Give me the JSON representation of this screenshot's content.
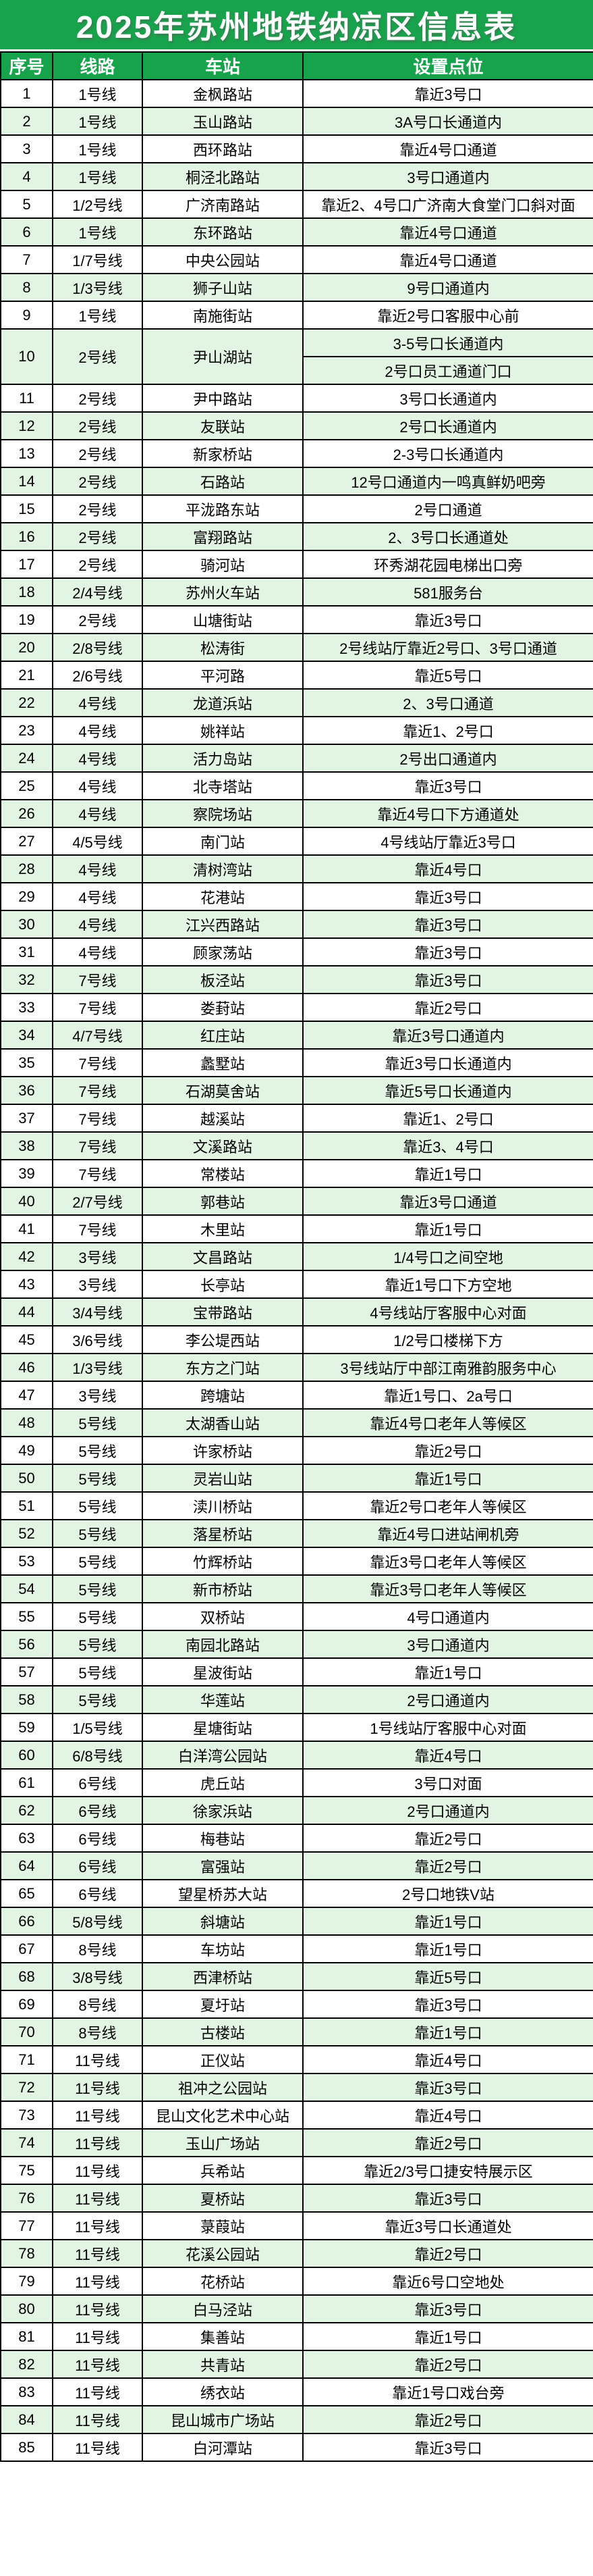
{
  "title": "2025年苏州地铁纳凉区信息表",
  "colors": {
    "header_green": "#17a34b",
    "row_green": "#e2f5e3",
    "row_white": "#ffffff",
    "border": "#000000",
    "header_text": "#ffffff",
    "body_text": "#000000"
  },
  "table": {
    "headers": [
      "序号",
      "线路",
      "车站",
      "设置点位"
    ],
    "rows": [
      {
        "n": "1",
        "line": "1号线",
        "station": "金枫路站",
        "loc": "靠近3号口"
      },
      {
        "n": "2",
        "line": "1号线",
        "station": "玉山路站",
        "loc": "3A号口长通道内"
      },
      {
        "n": "3",
        "line": "1号线",
        "station": "西环路站",
        "loc": "靠近4号口通道"
      },
      {
        "n": "4",
        "line": "1号线",
        "station": "桐泾北路站",
        "loc": "3号口通道内"
      },
      {
        "n": "5",
        "line": "1/2号线",
        "station": "广济南路站",
        "loc": "靠近2、4号口广济南大食堂门口斜对面"
      },
      {
        "n": "6",
        "line": "1号线",
        "station": "东环路站",
        "loc": "靠近4号口通道"
      },
      {
        "n": "7",
        "line": "1/7号线",
        "station": "中央公园站",
        "loc": "靠近4号口通道"
      },
      {
        "n": "8",
        "line": "1/3号线",
        "station": "狮子山站",
        "loc": "9号口通道内"
      },
      {
        "n": "9",
        "line": "1号线",
        "station": "南施街站",
        "loc": "靠近2号口客服中心前"
      },
      {
        "n": "10",
        "line": "2号线",
        "station": "尹山湖站",
        "loc": [
          "3-5号口长通道内",
          "2号口员工通道门口"
        ]
      },
      {
        "n": "11",
        "line": "2号线",
        "station": "尹中路站",
        "loc": "3号口长通道内"
      },
      {
        "n": "12",
        "line": "2号线",
        "station": "友联站",
        "loc": "2号口长通道内"
      },
      {
        "n": "13",
        "line": "2号线",
        "station": "新家桥站",
        "loc": "2-3号口长通道内"
      },
      {
        "n": "14",
        "line": "2号线",
        "station": "石路站",
        "loc": "12号口通道内一鸣真鲜奶吧旁"
      },
      {
        "n": "15",
        "line": "2号线",
        "station": "平泷路东站",
        "loc": "2号口通道"
      },
      {
        "n": "16",
        "line": "2号线",
        "station": "富翔路站",
        "loc": "2、3号口长通道处"
      },
      {
        "n": "17",
        "line": "2号线",
        "station": "骑河站",
        "loc": "环秀湖花园电梯出口旁"
      },
      {
        "n": "18",
        "line": "2/4号线",
        "station": "苏州火车站",
        "loc": "581服务台"
      },
      {
        "n": "19",
        "line": "2号线",
        "station": "山塘街站",
        "loc": "靠近3号口"
      },
      {
        "n": "20",
        "line": "2/8号线",
        "station": "松涛街",
        "loc": "2号线站厅靠近2号口、3号口通道"
      },
      {
        "n": "21",
        "line": "2/6号线",
        "station": "平河路",
        "loc": "靠近5号口"
      },
      {
        "n": "22",
        "line": "4号线",
        "station": "龙道浜站",
        "loc": "2、3号口通道"
      },
      {
        "n": "23",
        "line": "4号线",
        "station": "姚祥站",
        "loc": "靠近1、2号口"
      },
      {
        "n": "24",
        "line": "4号线",
        "station": "活力岛站",
        "loc": "2号出口通道内"
      },
      {
        "n": "25",
        "line": "4号线",
        "station": "北寺塔站",
        "loc": "靠近3号口"
      },
      {
        "n": "26",
        "line": "4号线",
        "station": "察院场站",
        "loc": "靠近4号口下方通道处"
      },
      {
        "n": "27",
        "line": "4/5号线",
        "station": "南门站",
        "loc": "4号线站厅靠近3号口"
      },
      {
        "n": "28",
        "line": "4号线",
        "station": "清树湾站",
        "loc": "靠近4号口"
      },
      {
        "n": "29",
        "line": "4号线",
        "station": "花港站",
        "loc": "靠近3号口"
      },
      {
        "n": "30",
        "line": "4号线",
        "station": "江兴西路站",
        "loc": "靠近3号口"
      },
      {
        "n": "31",
        "line": "4号线",
        "station": "顾家荡站",
        "loc": "靠近3号口"
      },
      {
        "n": "32",
        "line": "7号线",
        "station": "板泾站",
        "loc": "靠近3号口"
      },
      {
        "n": "33",
        "line": "7号线",
        "station": "娄葑站",
        "loc": "靠近2号口"
      },
      {
        "n": "34",
        "line": "4/7号线",
        "station": "红庄站",
        "loc": "靠近3号口通道内"
      },
      {
        "n": "35",
        "line": "7号线",
        "station": "蠡墅站",
        "loc": "靠近3号口长通道内"
      },
      {
        "n": "36",
        "line": "7号线",
        "station": "石湖莫舍站",
        "loc": "靠近5号口长通道内"
      },
      {
        "n": "37",
        "line": "7号线",
        "station": "越溪站",
        "loc": "靠近1、2号口"
      },
      {
        "n": "38",
        "line": "7号线",
        "station": "文溪路站",
        "loc": "靠近3、4号口"
      },
      {
        "n": "39",
        "line": "7号线",
        "station": "常楼站",
        "loc": "靠近1号口"
      },
      {
        "n": "40",
        "line": "2/7号线",
        "station": "郭巷站",
        "loc": "靠近3号口通道"
      },
      {
        "n": "41",
        "line": "7号线",
        "station": "木里站",
        "loc": "靠近1号口"
      },
      {
        "n": "42",
        "line": "3号线",
        "station": "文昌路站",
        "loc": "1/4号口之间空地"
      },
      {
        "n": "43",
        "line": "3号线",
        "station": "长亭站",
        "loc": "靠近1号口下方空地"
      },
      {
        "n": "44",
        "line": "3/4号线",
        "station": "宝带路站",
        "loc": "4号线站厅客服中心对面"
      },
      {
        "n": "45",
        "line": "3/6号线",
        "station": "李公堤西站",
        "loc": "1/2号口楼梯下方"
      },
      {
        "n": "46",
        "line": "1/3号线",
        "station": "东方之门站",
        "loc": "3号线站厅中部江南雅韵服务中心"
      },
      {
        "n": "47",
        "line": "3号线",
        "station": "跨塘站",
        "loc": "靠近1号口、2a号口"
      },
      {
        "n": "48",
        "line": "5号线",
        "station": "太湖香山站",
        "loc": "靠近4号口老年人等候区"
      },
      {
        "n": "49",
        "line": "5号线",
        "station": "许家桥站",
        "loc": "靠近2号口"
      },
      {
        "n": "50",
        "line": "5号线",
        "station": "灵岩山站",
        "loc": "靠近1号口"
      },
      {
        "n": "51",
        "line": "5号线",
        "station": "渎川桥站",
        "loc": "靠近2号口老年人等候区"
      },
      {
        "n": "52",
        "line": "5号线",
        "station": "落星桥站",
        "loc": "靠近4号口进站闸机旁"
      },
      {
        "n": "53",
        "line": "5号线",
        "station": "竹辉桥站",
        "loc": "靠近3号口老年人等候区"
      },
      {
        "n": "54",
        "line": "5号线",
        "station": "新市桥站",
        "loc": "靠近3号口老年人等候区"
      },
      {
        "n": "55",
        "line": "5号线",
        "station": "双桥站",
        "loc": "4号口通道内"
      },
      {
        "n": "56",
        "line": "5号线",
        "station": "南园北路站",
        "loc": "3号口通道内"
      },
      {
        "n": "57",
        "line": "5号线",
        "station": "星波街站",
        "loc": "靠近1号口"
      },
      {
        "n": "58",
        "line": "5号线",
        "station": "华莲站",
        "loc": "2号口通道内"
      },
      {
        "n": "59",
        "line": "1/5号线",
        "station": "星塘街站",
        "loc": "1号线站厅客服中心对面"
      },
      {
        "n": "60",
        "line": "6/8号线",
        "station": "白洋湾公园站",
        "loc": "靠近4号口"
      },
      {
        "n": "61",
        "line": "6号线",
        "station": "虎丘站",
        "loc": "3号口对面"
      },
      {
        "n": "62",
        "line": "6号线",
        "station": "徐家浜站",
        "loc": "2号口通道内"
      },
      {
        "n": "63",
        "line": "6号线",
        "station": "梅巷站",
        "loc": "靠近2号口"
      },
      {
        "n": "64",
        "line": "6号线",
        "station": "富强站",
        "loc": "靠近2号口"
      },
      {
        "n": "65",
        "line": "6号线",
        "station": "望星桥苏大站",
        "loc": "2号口地铁V站"
      },
      {
        "n": "66",
        "line": "5/8号线",
        "station": "斜塘站",
        "loc": "靠近1号口"
      },
      {
        "n": "67",
        "line": "8号线",
        "station": "车坊站",
        "loc": "靠近1号口"
      },
      {
        "n": "68",
        "line": "3/8号线",
        "station": "西津桥站",
        "loc": "靠近5号口"
      },
      {
        "n": "69",
        "line": "8号线",
        "station": "夏圩站",
        "loc": "靠近3号口"
      },
      {
        "n": "70",
        "line": "8号线",
        "station": "古楼站",
        "loc": "靠近1号口"
      },
      {
        "n": "71",
        "line": "11号线",
        "station": "正仪站",
        "loc": "靠近4号口"
      },
      {
        "n": "72",
        "line": "11号线",
        "station": "祖冲之公园站",
        "loc": "靠近3号口"
      },
      {
        "n": "73",
        "line": "11号线",
        "station": "昆山文化艺术中心站",
        "loc": "靠近4号口"
      },
      {
        "n": "74",
        "line": "11号线",
        "station": "玉山广场站",
        "loc": "靠近2号口"
      },
      {
        "n": "75",
        "line": "11号线",
        "station": "兵希站",
        "loc": "靠近2/3号口捷安特展示区"
      },
      {
        "n": "76",
        "line": "11号线",
        "station": "夏桥站",
        "loc": "靠近3号口"
      },
      {
        "n": "77",
        "line": "11号线",
        "station": "菉葭站",
        "loc": "靠近3号口长通道处"
      },
      {
        "n": "78",
        "line": "11号线",
        "station": "花溪公园站",
        "loc": "靠近2号口"
      },
      {
        "n": "79",
        "line": "11号线",
        "station": "花桥站",
        "loc": "靠近6号口空地处"
      },
      {
        "n": "80",
        "line": "11号线",
        "station": "白马泾站",
        "loc": "靠近3号口"
      },
      {
        "n": "81",
        "line": "11号线",
        "station": "集善站",
        "loc": "靠近1号口"
      },
      {
        "n": "82",
        "line": "11号线",
        "station": "共青站",
        "loc": "靠近2号口"
      },
      {
        "n": "83",
        "line": "11号线",
        "station": "绣衣站",
        "loc": "靠近1号口戏台旁"
      },
      {
        "n": "84",
        "line": "11号线",
        "station": "昆山城市广场站",
        "loc": "靠近2号口"
      },
      {
        "n": "85",
        "line": "11号线",
        "station": "白河潭站",
        "loc": "靠近3号口"
      }
    ]
  }
}
